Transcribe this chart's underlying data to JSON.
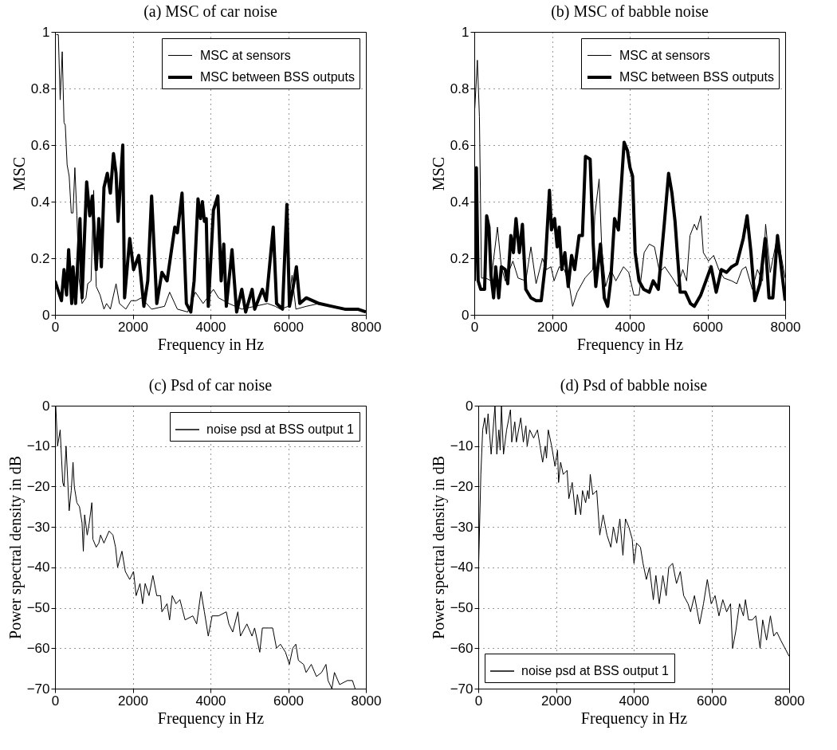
{
  "chart_data": [
    {
      "type": "line",
      "title": "(a) MSC of car noise",
      "xlabel": "Frequency in Hz",
      "ylabel": "MSC",
      "xlim": [
        0,
        8000
      ],
      "xticks": [
        0,
        2000,
        4000,
        6000,
        8000
      ],
      "ylim": [
        0,
        1
      ],
      "yticks": [
        0,
        0.2,
        0.4,
        0.6,
        0.8,
        1
      ],
      "grid": true,
      "legend": "top right",
      "series": [
        {
          "name": "MSC at sensors",
          "color": "#000000",
          "x": [
            33,
            86,
            133,
            186,
            232,
            265,
            312,
            365,
            418,
            464,
            511,
            564,
            617,
            696,
            796,
            842,
            928,
            995,
            1061,
            1160,
            1260,
            1326,
            1425,
            1571,
            1658,
            1823,
            1956,
            2088,
            2221,
            2354,
            2486,
            2818,
            2950,
            3149,
            3415,
            3613,
            3812,
            4077,
            4210,
            4475,
            4807,
            5138,
            5470,
            5669,
            5801,
            6000,
            6100,
            6199,
            6464,
            6796,
            7127,
            7459,
            7790,
            8000
          ],
          "values": [
            0.99,
            0.99,
            0.76,
            0.93,
            0.68,
            0.67,
            0.53,
            0.49,
            0.36,
            0.36,
            0.52,
            0.35,
            0.13,
            0.04,
            0.06,
            0.11,
            0.12,
            0.44,
            0.1,
            0.07,
            0.02,
            0.04,
            0.02,
            0.11,
            0.04,
            0.02,
            0.05,
            0.05,
            0.06,
            0.04,
            0.02,
            0.03,
            0.08,
            0.02,
            0.01,
            0.08,
            0.04,
            0.09,
            0.06,
            0.04,
            0.02,
            0.03,
            0.04,
            0.03,
            0.02,
            0.03,
            0.14,
            0.02,
            0.03,
            0.04,
            0.03,
            0.02,
            0.02,
            0.01
          ]
        },
        {
          "name": "MSC between BSS outputs",
          "color": "#000000",
          "x": [
            0,
            166,
            232,
            298,
            351,
            431,
            464,
            530,
            643,
            696,
            815,
            895,
            961,
            1061,
            1127,
            1193,
            1260,
            1346,
            1425,
            1505,
            1571,
            1624,
            1744,
            1790,
            1923,
            2022,
            2155,
            2287,
            2387,
            2486,
            2619,
            2751,
            2884,
            3083,
            3149,
            3269,
            3381,
            3494,
            3580,
            3680,
            3746,
            3792,
            3845,
            3892,
            3945,
            4077,
            4190,
            4276,
            4343,
            4409,
            4555,
            4674,
            4807,
            4906,
            5072,
            5138,
            5337,
            5437,
            5616,
            5702,
            5854,
            5967,
            6033,
            6119,
            6212,
            6299,
            6464,
            6796,
            7127,
            7459,
            7790,
            8000
          ],
          "values": [
            0.12,
            0.05,
            0.16,
            0.07,
            0.23,
            0.04,
            0.17,
            0.04,
            0.34,
            0.06,
            0.47,
            0.35,
            0.42,
            0.16,
            0.34,
            0.17,
            0.45,
            0.5,
            0.43,
            0.57,
            0.5,
            0.33,
            0.6,
            0.06,
            0.27,
            0.16,
            0.21,
            0.03,
            0.12,
            0.42,
            0.04,
            0.15,
            0.12,
            0.31,
            0.29,
            0.43,
            0.04,
            0.01,
            0.12,
            0.41,
            0.34,
            0.4,
            0.33,
            0.34,
            0.03,
            0.37,
            0.42,
            0.12,
            0.25,
            0.03,
            0.23,
            0.01,
            0.09,
            0.01,
            0.09,
            0.02,
            0.09,
            0.05,
            0.31,
            0.04,
            0.02,
            0.39,
            0.03,
            0.09,
            0.17,
            0.04,
            0.06,
            0.04,
            0.03,
            0.02,
            0.02,
            0.01
          ]
        }
      ]
    },
    {
      "type": "line",
      "title": "(b) MSC of babble noise",
      "xlabel": "Frequency in Hz",
      "ylabel": "MSC",
      "xlim": [
        0,
        8000
      ],
      "xticks": [
        0,
        2000,
        4000,
        6000,
        8000
      ],
      "ylim": [
        0,
        1
      ],
      "yticks": [
        0,
        0.2,
        0.4,
        0.6,
        0.8,
        1
      ],
      "grid": true,
      "legend": "top right",
      "series": [
        {
          "name": "MSC at sensors",
          "color": "#000000",
          "x": [
            13,
            79,
            132,
            185,
            298,
            430,
            596,
            695,
            795,
            993,
            1126,
            1325,
            1457,
            1590,
            1755,
            1854,
            1974,
            2053,
            2186,
            2318,
            2450,
            2530,
            2649,
            2848,
            3047,
            3100,
            3212,
            3278,
            3378,
            3510,
            3643,
            3841,
            3974,
            4106,
            4239,
            4371,
            4504,
            4636,
            4769,
            4901,
            5100,
            5232,
            5365,
            5464,
            5550,
            5663,
            5729,
            5828,
            5894,
            6027,
            6159,
            6292,
            6424,
            6623,
            6755,
            6888,
            6987,
            7153,
            7285,
            7418,
            7497,
            7616,
            7802,
            8000
          ],
          "values": [
            0.73,
            0.9,
            0.7,
            0.13,
            0.13,
            0.12,
            0.31,
            0.17,
            0.12,
            0.19,
            0.13,
            0.12,
            0.24,
            0.11,
            0.2,
            0.16,
            0.17,
            0.12,
            0.17,
            0.16,
            0.1,
            0.03,
            0.08,
            0.13,
            0.16,
            0.35,
            0.48,
            0.24,
            0.1,
            0.16,
            0.12,
            0.17,
            0.15,
            0.07,
            0.07,
            0.22,
            0.25,
            0.24,
            0.15,
            0.17,
            0.13,
            0.1,
            0.16,
            0.12,
            0.28,
            0.32,
            0.3,
            0.35,
            0.22,
            0.19,
            0.21,
            0.16,
            0.13,
            0.12,
            0.11,
            0.16,
            0.17,
            0.09,
            0.16,
            0.12,
            0.32,
            0.15,
            0.28,
            0.13
          ]
        },
        {
          "name": "MSC between BSS outputs",
          "color": "#000000",
          "x": [
            0,
            53,
            99,
            166,
            265,
            318,
            377,
            430,
            497,
            550,
            629,
            695,
            795,
            861,
            940,
            1007,
            1073,
            1159,
            1238,
            1325,
            1457,
            1590,
            1722,
            1821,
            1934,
            1987,
            2066,
            2133,
            2185,
            2252,
            2331,
            2417,
            2504,
            2583,
            2696,
            2782,
            2861,
            2981,
            3060,
            3126,
            3245,
            3345,
            3431,
            3510,
            3609,
            3709,
            3855,
            3941,
            4007,
            4073,
            4139,
            4239,
            4358,
            4504,
            4603,
            4735,
            4888,
            5000,
            5086,
            5166,
            5298,
            5431,
            5563,
            5663,
            5828,
            5961,
            6093,
            6225,
            6358,
            6491,
            6623,
            6755,
            6921,
            7020,
            7120,
            7219,
            7352,
            7484,
            7583,
            7683,
            7802,
            8000
          ],
          "values": [
            0.12,
            0.52,
            0.12,
            0.09,
            0.09,
            0.35,
            0.31,
            0.14,
            0.06,
            0.17,
            0.06,
            0.17,
            0.16,
            0.11,
            0.28,
            0.22,
            0.34,
            0.22,
            0.32,
            0.09,
            0.06,
            0.05,
            0.05,
            0.17,
            0.44,
            0.3,
            0.34,
            0.24,
            0.31,
            0.16,
            0.22,
            0.1,
            0.21,
            0.16,
            0.28,
            0.28,
            0.56,
            0.55,
            0.25,
            0.1,
            0.25,
            0.06,
            0.03,
            0.12,
            0.34,
            0.3,
            0.61,
            0.58,
            0.52,
            0.49,
            0.22,
            0.12,
            0.09,
            0.08,
            0.12,
            0.09,
            0.32,
            0.5,
            0.43,
            0.33,
            0.08,
            0.08,
            0.04,
            0.03,
            0.07,
            0.12,
            0.17,
            0.08,
            0.16,
            0.15,
            0.17,
            0.18,
            0.27,
            0.35,
            0.22,
            0.05,
            0.11,
            0.27,
            0.06,
            0.06,
            0.28,
            0.05
          ]
        }
      ]
    },
    {
      "type": "line",
      "title": "(c) Psd of car noise",
      "xlabel": "Frequency in Hz",
      "ylabel": "Power spectral density in dB",
      "xlim": [
        0,
        8000
      ],
      "xticks": [
        0,
        2000,
        4000,
        6000,
        8000
      ],
      "ylim": [
        -70,
        0
      ],
      "yticks": [
        -70,
        -60,
        -50,
        -40,
        -30,
        -20,
        -10,
        0
      ],
      "grid": true,
      "legend": "top right",
      "series": [
        {
          "name": "noise psd at BSS output 1",
          "color": "#000000",
          "x": [
            20,
            66,
            133,
            199,
            232,
            285,
            365,
            418,
            464,
            497,
            563,
            630,
            696,
            729,
            762,
            829,
            882,
            948,
            974,
            1060,
            1127,
            1173,
            1259,
            1392,
            1491,
            1558,
            1611,
            1723,
            1809,
            1922,
            2021,
            2088,
            2187,
            2254,
            2320,
            2419,
            2519,
            2618,
            2717,
            2751,
            2883,
            2949,
            3016,
            3115,
            3215,
            3347,
            3546,
            3645,
            3758,
            3844,
            3944,
            4043,
            4209,
            4408,
            4474,
            4573,
            4706,
            4772,
            4938,
            5070,
            5137,
            5269,
            5336,
            5501,
            5601,
            5700,
            5800,
            5932,
            6031,
            6118,
            6197,
            6263,
            6396,
            6462,
            6595,
            6727,
            6860,
            6973,
            7026,
            7125,
            7191,
            7324,
            7523,
            7655,
            7722
          ],
          "values": [
            0,
            -10,
            -6,
            -19,
            -20,
            -10,
            -26,
            -21,
            -14,
            -20,
            -24,
            -25,
            -29,
            -36,
            -27,
            -32,
            -29,
            -24,
            -33,
            -35,
            -34,
            -32,
            -34,
            -31,
            -32,
            -35,
            -40,
            -36,
            -41,
            -43,
            -41,
            -47,
            -44,
            -49,
            -44,
            -47,
            -42,
            -47,
            -47,
            -51,
            -49,
            -53,
            -47,
            -49,
            -48,
            -53,
            -52,
            -54,
            -46,
            -51,
            -57,
            -52,
            -52,
            -51,
            -54,
            -56,
            -51,
            -57,
            -54,
            -57,
            -55,
            -61,
            -55,
            -55,
            -55,
            -60,
            -59,
            -61,
            -64,
            -60,
            -59,
            -63,
            -64,
            -66,
            -64,
            -67,
            -66,
            -64,
            -68,
            -70,
            -66,
            -69,
            -68,
            -68,
            -70
          ]
        }
      ]
    },
    {
      "type": "line",
      "title": "(d) Psd of babble noise",
      "xlabel": "Frequency in Hz",
      "ylabel": "Power spectral density in dB",
      "xlim": [
        0,
        8000
      ],
      "xticks": [
        0,
        2000,
        4000,
        6000,
        8000
      ],
      "ylim": [
        -70,
        0
      ],
      "yticks": [
        -70,
        -60,
        -50,
        -40,
        -30,
        -20,
        -10,
        0
      ],
      "grid": true,
      "legend": "bottom left",
      "series": [
        {
          "name": "noise psd at BSS output 1",
          "color": "#000000",
          "x": [
            0,
            66,
            113,
            166,
            212,
            252,
            331,
            430,
            477,
            530,
            563,
            596,
            649,
            729,
            828,
            861,
            940,
            980,
            1093,
            1159,
            1225,
            1258,
            1325,
            1424,
            1523,
            1590,
            1656,
            1722,
            1755,
            1801,
            1888,
            1974,
            2040,
            2066,
            2119,
            2186,
            2285,
            2331,
            2417,
            2503,
            2550,
            2636,
            2682,
            2762,
            2815,
            2848,
            2881,
            2947,
            3047,
            3126,
            3212,
            3312,
            3411,
            3477,
            3563,
            3643,
            3722,
            3788,
            3874,
            3961,
            4007,
            4073,
            4173,
            4239,
            4325,
            4404,
            4504,
            4570,
            4656,
            4749,
            4835,
            4901,
            5000,
            5100,
            5199,
            5285,
            5398,
            5464,
            5563,
            5696,
            5795,
            5894,
            5994,
            6093,
            6193,
            6292,
            6391,
            6491,
            6544,
            6623,
            6722,
            6822,
            6875,
            6954,
            7053,
            7140,
            7252,
            7319,
            7418,
            7517,
            7603,
            7683,
            7782,
            8000
          ],
          "values": [
            -43,
            -17,
            -6,
            -3,
            -7,
            -2,
            -12,
            0,
            -12,
            -6,
            -11,
            0,
            -12,
            -6,
            -1,
            -9,
            -4,
            -9,
            -3,
            -9,
            -5,
            -10,
            -6,
            -8,
            -6,
            -10,
            -14,
            -10,
            -13,
            -6,
            -10,
            -15,
            -11,
            -19,
            -14,
            -17,
            -16,
            -23,
            -19,
            -27,
            -22,
            -27,
            -21,
            -24,
            -21,
            -23,
            -17,
            -22,
            -21,
            -32,
            -27,
            -32,
            -35,
            -30,
            -34,
            -28,
            -37,
            -28,
            -30,
            -33,
            -39,
            -34,
            -35,
            -39,
            -43,
            -40,
            -48,
            -42,
            -49,
            -42,
            -47,
            -40,
            -39,
            -44,
            -41,
            -47,
            -49,
            -51,
            -47,
            -54,
            -49,
            -43,
            -49,
            -47,
            -52,
            -48,
            -51,
            -49,
            -60,
            -56,
            -49,
            -52,
            -48,
            -53,
            -53,
            -52,
            -60,
            -53,
            -58,
            -52,
            -57,
            -56,
            -58,
            -62
          ]
        }
      ]
    }
  ]
}
